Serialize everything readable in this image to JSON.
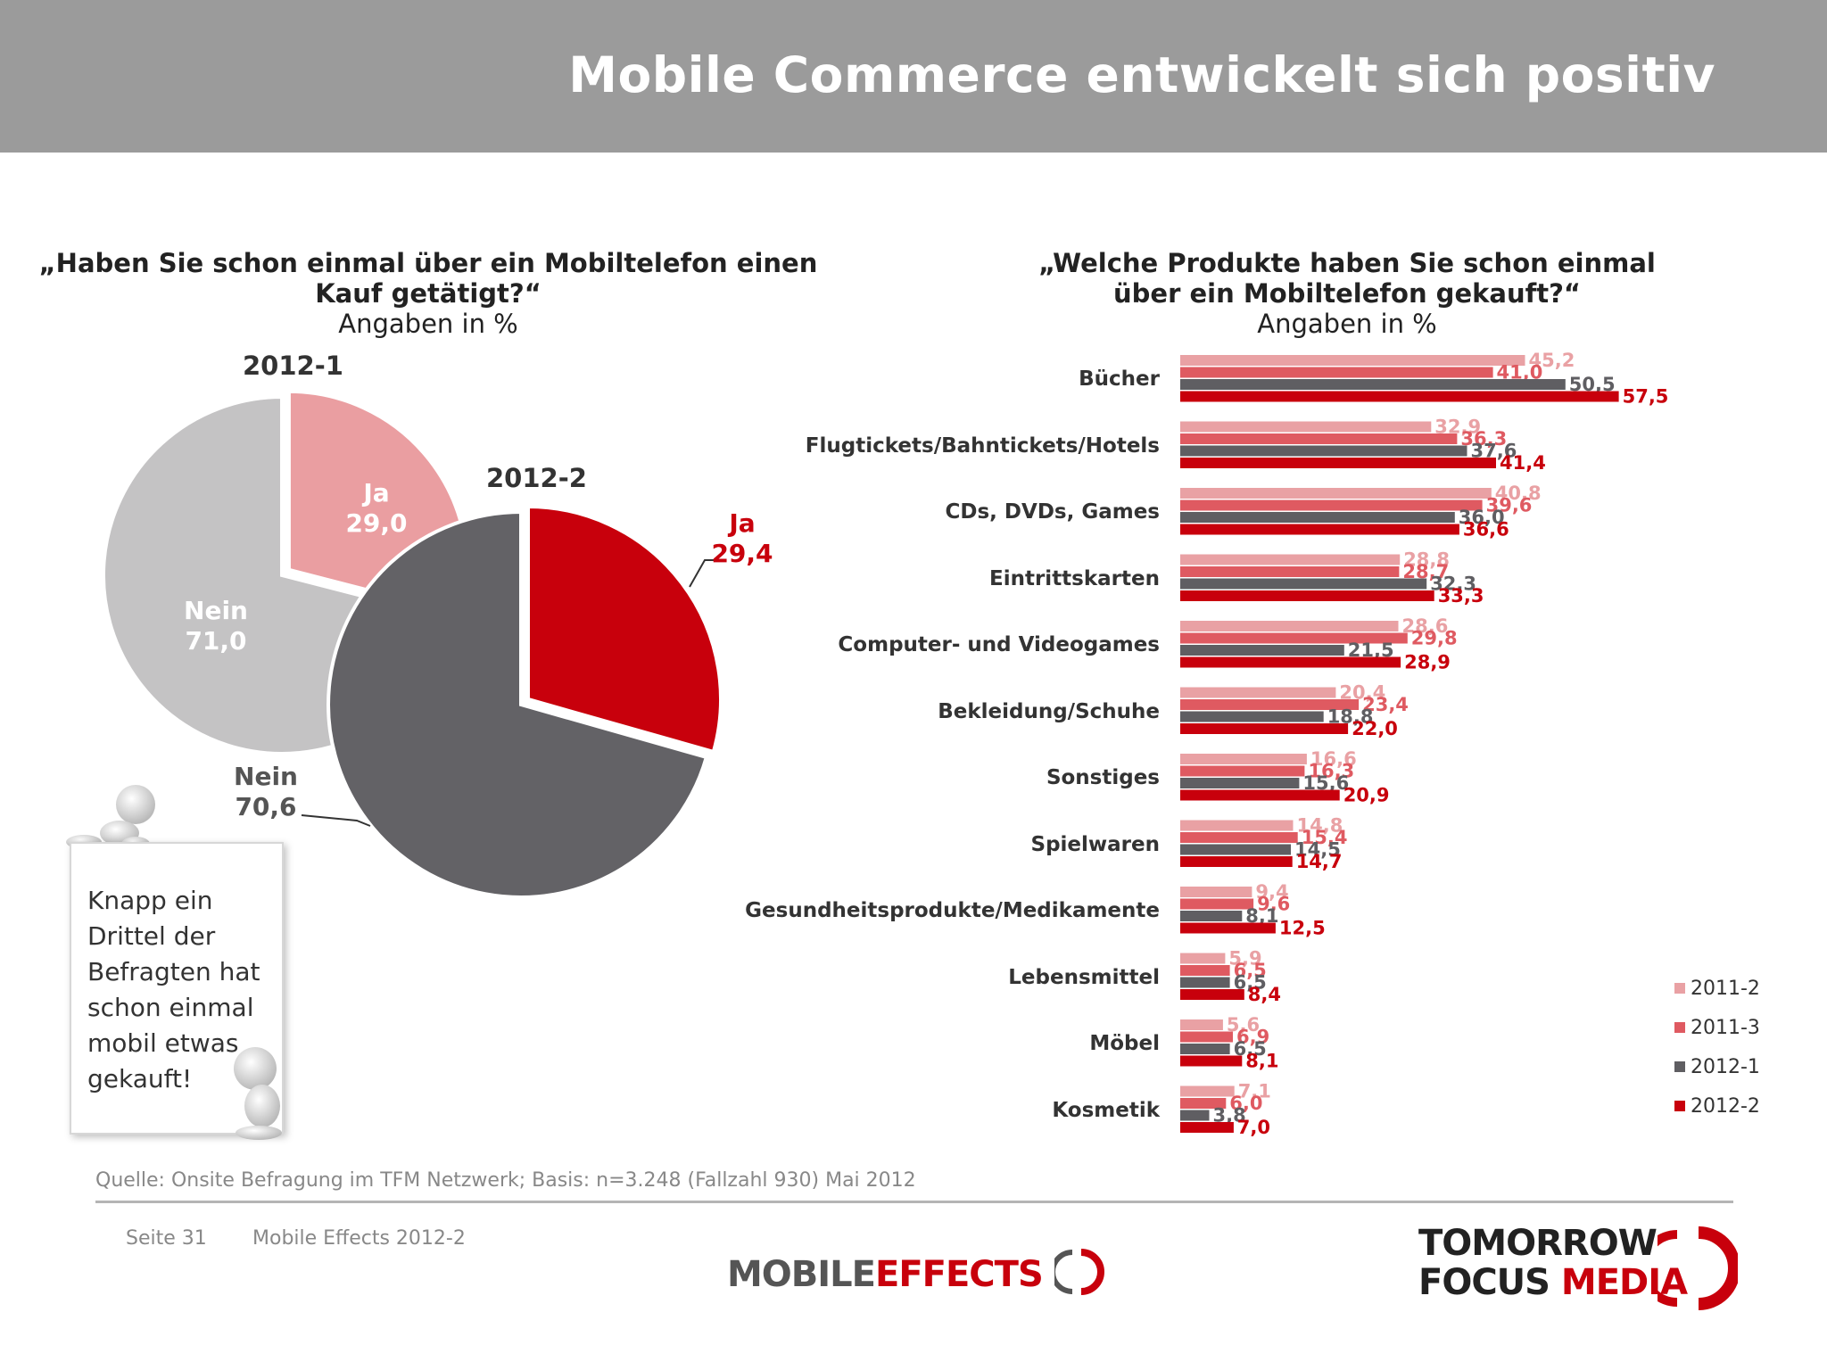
{
  "header": {
    "title": "Mobile Commerce entwickelt sich positiv"
  },
  "left": {
    "question": "„Haben Sie schon einmal über ein Mobiltelefon einen Kauf getätigt?“",
    "subtitle": "Angaben in %"
  },
  "right": {
    "question_line1": "„Welche Produkte haben Sie schon einmal",
    "question_line2": "über ein Mobiltelefon gekauft?“",
    "subtitle": "Angaben in %"
  },
  "note": {
    "text": "Knapp ein Drittel der Befragten hat schon einmal mobil etwas gekauft!"
  },
  "footer": {
    "source": "Quelle: Onsite Befragung im TFM Netzwerk; Basis: n=3.248 (Fallzahl 930) Mai 2012",
    "page": "Seite 31",
    "name": "Mobile Effects 2012-2",
    "logo_mobile_part1": "MOBILE",
    "logo_mobile_part2": "EFFECTS",
    "logo_tfm_line1": "TOMORROW",
    "logo_tfm_line2a": "FOCUS",
    "logo_tfm_line2b": "MEDIA"
  },
  "colors": {
    "header_bg": "#9b9b9b",
    "s2011_2": "#e9a1a4",
    "s2011_3": "#df5a61",
    "s2012_1": "#5f5e62",
    "s2012_2": "#c8000c",
    "pie1_ja": "#ea9ea1",
    "pie1_nein": "#c4c3c4",
    "pie2_ja": "#c8000c",
    "pie2_nein": "#636266"
  },
  "chart_data": [
    {
      "type": "pie",
      "title": "2012-1",
      "slices": [
        {
          "label": "Ja",
          "value": 29.0,
          "display": "29,0"
        },
        {
          "label": "Nein",
          "value": 71.0,
          "display": "71,0"
        }
      ]
    },
    {
      "type": "pie",
      "title": "2012-2",
      "slices": [
        {
          "label": "Ja",
          "value": 29.4,
          "display": "29,4"
        },
        {
          "label": "Nein",
          "value": 70.6,
          "display": "70,6"
        }
      ]
    },
    {
      "type": "bar",
      "orientation": "horizontal",
      "categories": [
        "Bücher",
        "Flugtickets/Bahntickets/Hotels",
        "CDs, DVDs, Games",
        "Eintrittskarten",
        "Computer- und Videogames",
        "Bekleidung/Schuhe",
        "Sonstiges",
        "Spielwaren",
        "Gesundheitsprodukte/Medikamente",
        "Lebensmittel",
        "Möbel",
        "Kosmetik"
      ],
      "series": [
        {
          "name": "2011-2",
          "values": [
            45.2,
            32.9,
            40.8,
            28.8,
            28.6,
            20.4,
            16.6,
            14.8,
            9.4,
            5.9,
            5.6,
            7.1
          ],
          "labels": [
            "45,2",
            "32,9",
            "40,8",
            "28,8",
            "28,6",
            "20,4",
            "16,6",
            "14,8",
            "9,4",
            "5,9",
            "5,6",
            "7,1"
          ]
        },
        {
          "name": "2011-3",
          "values": [
            41.0,
            36.3,
            39.6,
            28.7,
            29.8,
            23.4,
            16.3,
            15.4,
            9.6,
            6.5,
            6.9,
            6.0
          ],
          "labels": [
            "41,0",
            "36,3",
            "39,6",
            "28,7",
            "29,8",
            "23,4",
            "16,3",
            "15,4",
            "9,6",
            "6,5",
            "6,9",
            "6,0"
          ]
        },
        {
          "name": "2012-1",
          "values": [
            50.5,
            37.6,
            36.0,
            32.3,
            21.5,
            18.8,
            15.6,
            14.5,
            8.1,
            6.5,
            6.5,
            3.8
          ],
          "labels": [
            "50,5",
            "37,6",
            "36,0",
            "32,3",
            "21,5",
            "18,8",
            "15,6",
            "14,5",
            "8,1",
            "6,5",
            "6,5",
            "3,8"
          ]
        },
        {
          "name": "2012-2",
          "values": [
            57.5,
            41.4,
            36.6,
            33.3,
            28.9,
            22.0,
            20.9,
            14.7,
            12.5,
            8.4,
            8.1,
            7.0
          ],
          "labels": [
            "57,5",
            "41,4",
            "36,6",
            "33,3",
            "28,9",
            "22,0",
            "20,9",
            "14,7",
            "12,5",
            "8,4",
            "8,1",
            "7,0"
          ]
        }
      ],
      "legend": "right"
    }
  ]
}
